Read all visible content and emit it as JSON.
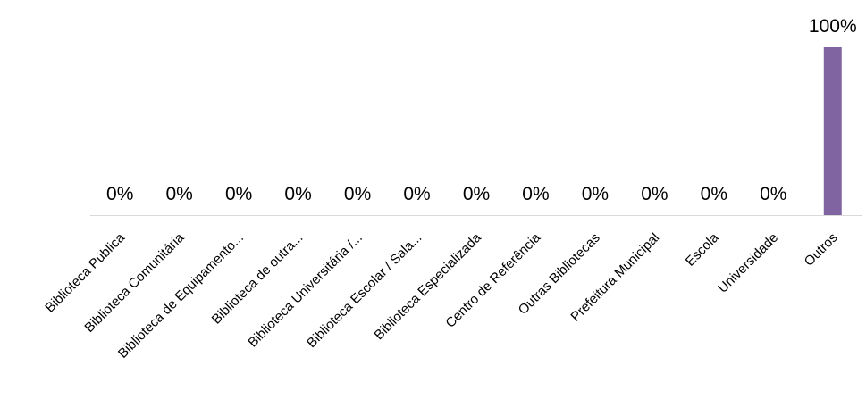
{
  "chart_data": {
    "type": "bar",
    "categories": [
      "Biblioteca Pública",
      "Biblioteca Comunitária",
      "Biblioteca de Equipamento...",
      "Biblioteca de outra...",
      "Biblioteca Universitária /...",
      "Biblioteca Escolar / Sala...",
      "Biblioteca Especializada",
      "Centro de Referência",
      "Outras Bibliotecas",
      "Prefeitura Municipal",
      "Escola",
      "Universidade",
      "Outros"
    ],
    "values": [
      0,
      0,
      0,
      0,
      0,
      0,
      0,
      0,
      0,
      0,
      0,
      0,
      100
    ],
    "data_labels": [
      "0%",
      "0%",
      "0%",
      "0%",
      "0%",
      "0%",
      "0%",
      "0%",
      "0%",
      "0%",
      "0%",
      "0%",
      "100%"
    ],
    "unit": "%",
    "ylim": [
      0,
      100
    ],
    "grid": false,
    "legend": "none",
    "bar_color": "#8064a2",
    "axis_color": "#d9d9d9"
  }
}
